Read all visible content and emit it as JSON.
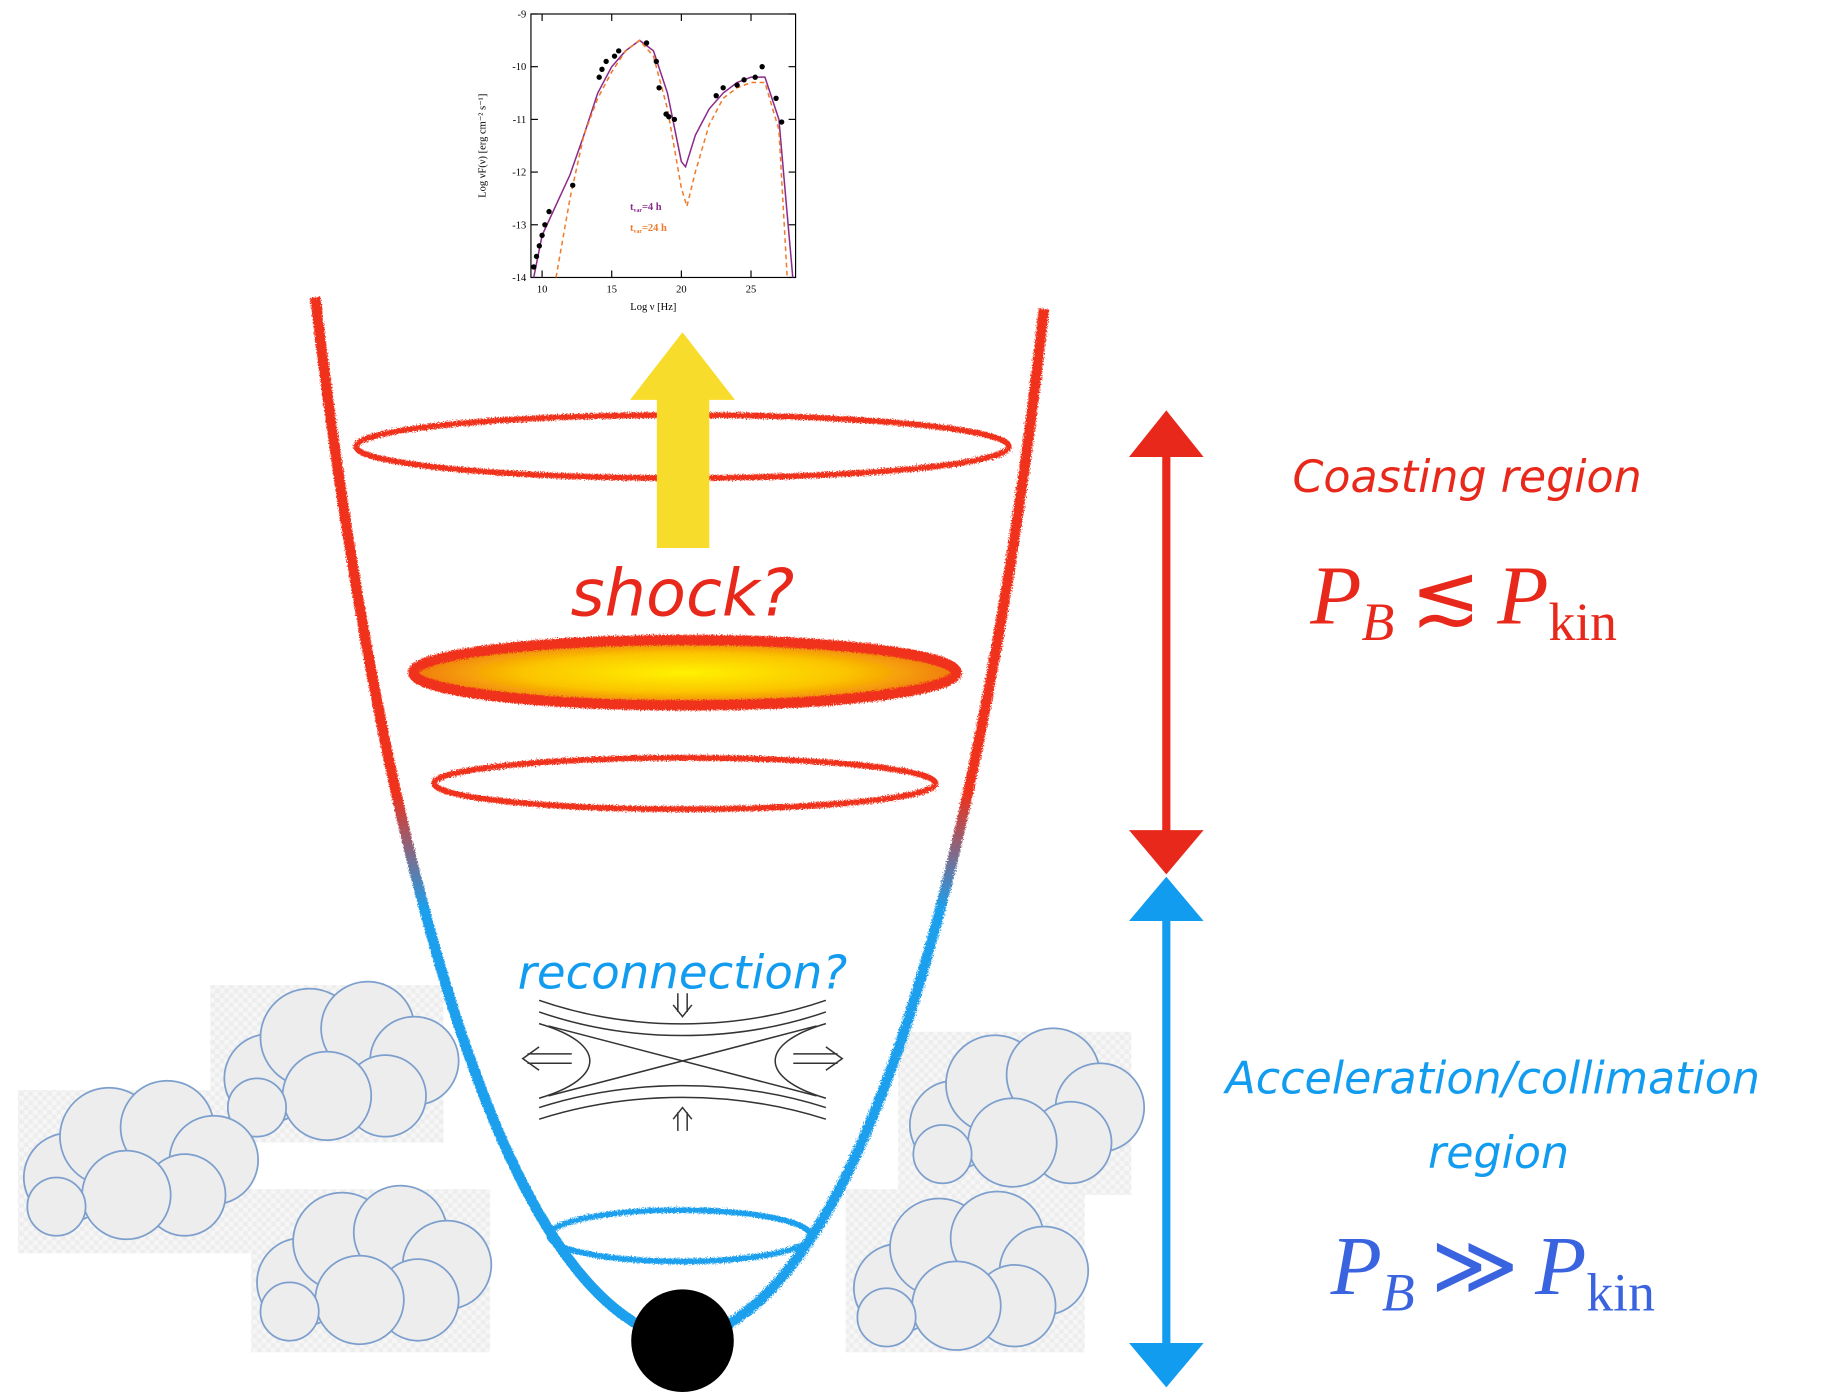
{
  "inset": {
    "type": "line",
    "x_label": "Log ν [Hz]",
    "y_label": "Log νF(ν) [erg cm⁻² s⁻¹]",
    "xlim": [
      9.2,
      28.2
    ],
    "ylim": [
      -14,
      -9
    ],
    "xticks": [
      10,
      15,
      20,
      25
    ],
    "yticks": [
      -9,
      -10,
      -11,
      -12,
      -13,
      -14
    ],
    "series": [
      {
        "name": "t",
        "name_sub": "var",
        "name_rest": "=4 h",
        "color": "#8b2a8b",
        "dashed": false,
        "x": [
          9.4,
          10,
          12,
          13,
          14,
          15,
          16,
          17,
          18,
          19,
          20,
          20.3,
          21,
          22,
          23,
          24,
          25,
          26,
          27,
          27.5,
          28
        ],
        "values": [
          -14,
          -13.2,
          -12.05,
          -11.3,
          -10.5,
          -10.0,
          -9.7,
          -9.5,
          -9.7,
          -10.5,
          -11.8,
          -11.9,
          -11.3,
          -10.8,
          -10.5,
          -10.3,
          -10.2,
          -10.2,
          -11.0,
          -12.5,
          -14
        ]
      },
      {
        "name": "t",
        "name_sub": "var",
        "name_rest": "=24 h",
        "color": "#f07a2a",
        "dashed": true,
        "x": [
          11,
          12,
          13,
          14,
          15,
          16,
          17,
          18,
          19,
          20,
          20.4,
          21,
          22,
          23,
          24,
          25,
          26,
          27,
          27.6
        ],
        "values": [
          -14,
          -12.5,
          -11.3,
          -10.6,
          -10.1,
          -9.7,
          -9.5,
          -9.8,
          -10.8,
          -12.3,
          -12.65,
          -12,
          -11.1,
          -10.6,
          -10.4,
          -10.3,
          -10.3,
          -11.2,
          -14
        ]
      }
    ],
    "data_points": {
      "color": "#000000",
      "x": [
        9.4,
        9.6,
        9.8,
        10,
        10.2,
        10.5,
        12.2,
        14.1,
        14.3,
        14.6,
        15.2,
        15.5,
        17.5,
        18.2,
        18.4,
        18.9,
        19.1,
        19.5,
        22.5,
        23,
        24,
        24.5,
        25.3,
        25.8,
        26.8,
        27.2
      ],
      "y": [
        -13.8,
        -13.6,
        -13.4,
        -13.2,
        -13.0,
        -12.75,
        -12.25,
        -10.2,
        -10.05,
        -9.9,
        -9.8,
        -9.7,
        -9.55,
        -9.9,
        -10.4,
        -10.9,
        -10.95,
        -11.0,
        -10.55,
        -10.4,
        -10.35,
        -10.25,
        -10.2,
        -10.0,
        -10.6,
        -11.05
      ]
    }
  },
  "labels": {
    "shock": "shock?",
    "reconnection": "reconnection?",
    "coasting": "Coasting region",
    "coasting_relation": {
      "lhs": "P",
      "lhs_sub": "B",
      "relation": "≲",
      "rhs": "P",
      "rhs_sub": "kin"
    },
    "acceleration_line1": "Acceleration/collimation",
    "acceleration_line2": "region",
    "acceleration_relation": {
      "lhs": "P",
      "lhs_sub": "B",
      "relation": "≫",
      "rhs": "P",
      "rhs_sub": "kin"
    }
  }
}
